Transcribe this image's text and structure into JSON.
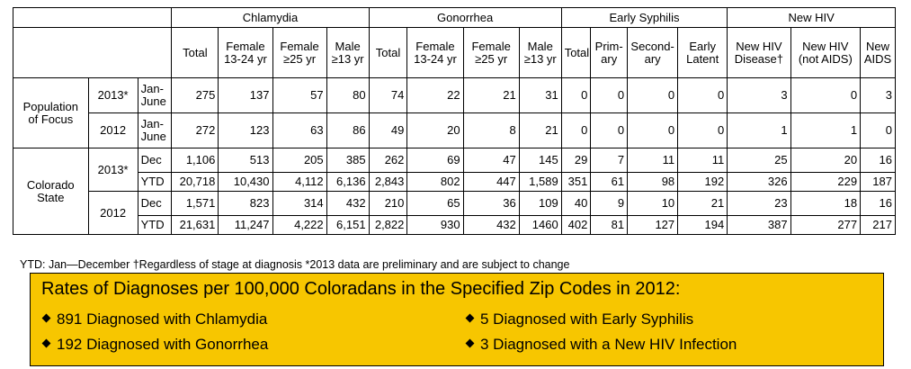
{
  "groups": {
    "chlamydia": "Chlamydia",
    "gonorrhea": "Gonorrhea",
    "syphilis": "Early Syphilis",
    "hiv": "New HIV"
  },
  "columns": {
    "total": "Total",
    "chl_f1324_a": "Female",
    "chl_f1324_b": "13-24 yr",
    "chl_f25_a": "Female",
    "chl_f25_b": "≥25 yr",
    "chl_m13_a": "Male",
    "chl_m13_b": "≥13 yr",
    "gon_f1324_a": "Female",
    "gon_f1324_b": "13-24 yr",
    "gon_f25_a": "Female",
    "gon_f25_b": "≥25 yr",
    "gon_m13_a": "Male",
    "gon_m13_b": "≥13 yr",
    "syp_prim_a": "Prim-",
    "syp_prim_b": "ary",
    "syp_sec_a": "Second-",
    "syp_sec_b": "ary",
    "syp_early_a": "Early",
    "syp_early_b": "Latent",
    "hiv_disease_a": "New HIV",
    "hiv_disease_b": "Disease†",
    "hiv_notaids_a": "New HIV",
    "hiv_notaids_b": "(not AIDS)",
    "hiv_aids_a": "New",
    "hiv_aids_b": "AIDS"
  },
  "labels": {
    "pof_a": "Population",
    "pof_b": "of Focus",
    "co_a": "Colorado",
    "co_b": "State",
    "y2013": "2013*",
    "y2012": "2012",
    "janjune_a": "Jan-",
    "janjune_b": "June",
    "dec": "Dec",
    "ytd": "YTD"
  },
  "rows": [
    [
      "275",
      "137",
      "57",
      "80",
      "74",
      "22",
      "21",
      "31",
      "0",
      "0",
      "0",
      "0",
      "3",
      "0",
      "3"
    ],
    [
      "272",
      "123",
      "63",
      "86",
      "49",
      "20",
      "8",
      "21",
      "0",
      "0",
      "0",
      "0",
      "1",
      "1",
      "0"
    ],
    [
      "1,106",
      "513",
      "205",
      "385",
      "262",
      "69",
      "47",
      "145",
      "29",
      "7",
      "11",
      "11",
      "25",
      "20",
      "16"
    ],
    [
      "20,718",
      "10,430",
      "4,112",
      "6,136",
      "2,843",
      "802",
      "447",
      "1,589",
      "351",
      "61",
      "98",
      "192",
      "326",
      "229",
      "187"
    ],
    [
      "1,571",
      "823",
      "314",
      "432",
      "210",
      "65",
      "36",
      "109",
      "40",
      "9",
      "10",
      "21",
      "23",
      "18",
      "16"
    ],
    [
      "21,631",
      "11,247",
      "4,222",
      "6,151",
      "2,822",
      "930",
      "432",
      "1460",
      "402",
      "81",
      "127",
      "194",
      "387",
      "277",
      "217"
    ]
  ],
  "footnote": "YTD: Jan—December †Regardless of stage at diagnosis *2013 data are preliminary and are subject to change",
  "rates": {
    "title": "Rates of Diagnoses per 100,000 Coloradans in the Specified Zip Codes in 2012:",
    "items": [
      "891 Diagnosed with Chlamydia",
      "192 Diagnosed with Gonorrhea",
      "5 Diagnosed with Early Syphilis",
      "3 Diagnosed with a New HIV Infection"
    ]
  },
  "colors": {
    "box": "#f7c600",
    "border": "#000000"
  }
}
